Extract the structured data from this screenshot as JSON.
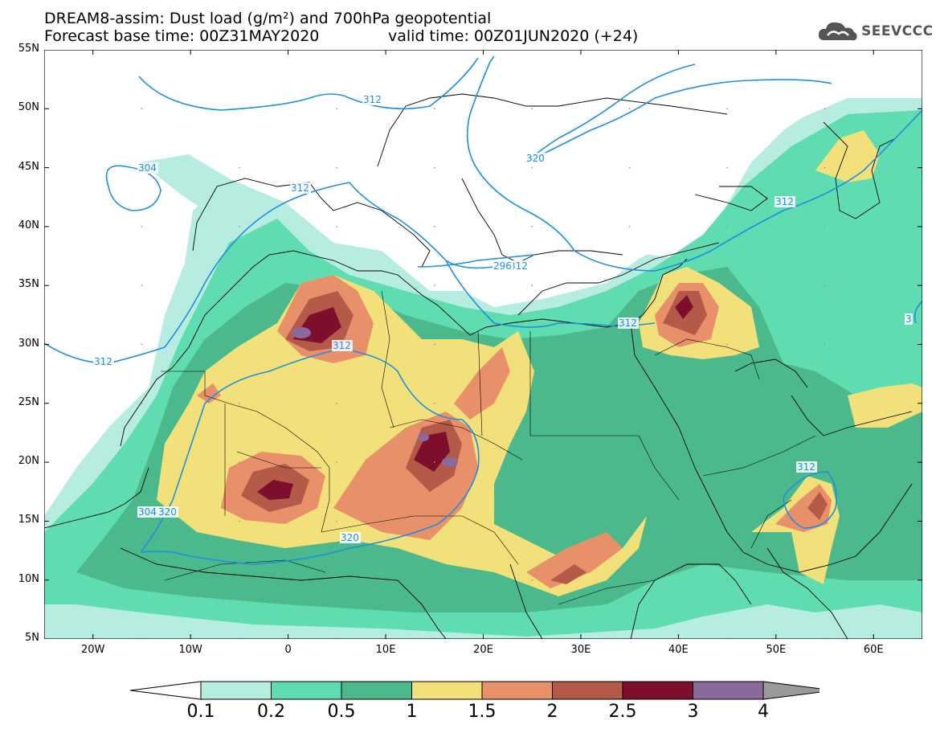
{
  "title_line1": "DREAM8-assim: Dust load (g/m²) and 700hPa geopotential",
  "title_line2_left": "Forecast base time: 00Z31MAY2020",
  "title_line2_right": "valid time: 00Z01JUN2020 (+24)",
  "logo_text": "SEEVCCC",
  "logo_icon": "cloud-logo-icon",
  "map": {
    "lon_range": [
      -25,
      65
    ],
    "lat_range": [
      5,
      55
    ],
    "lat_labels": [
      "55N",
      "50N",
      "45N",
      "40N",
      "35N",
      "30N",
      "25N",
      "20N",
      "15N",
      "10N",
      "5N"
    ],
    "lat_values": [
      55,
      50,
      45,
      40,
      35,
      30,
      25,
      20,
      15,
      10,
      5
    ],
    "lon_labels": [
      "20W",
      "10W",
      "0",
      "10E",
      "20E",
      "30E",
      "40E",
      "50E",
      "60E"
    ],
    "lon_values": [
      -20,
      -10,
      0,
      10,
      20,
      30,
      40,
      50,
      60
    ],
    "contour_labels": [
      "312",
      "312",
      "312",
      "312",
      "312",
      "312",
      "312",
      "304",
      "304",
      "296",
      "320",
      "320",
      "320",
      "312",
      "3"
    ],
    "contour_color": "#1e8fe0"
  },
  "colorbar": {
    "labels": [
      "0.1",
      "0.2",
      "0.5",
      "1",
      "1.5",
      "2",
      "2.5",
      "3",
      "4"
    ],
    "colors": [
      "#ffffff",
      "#b7ede0",
      "#5fdcb0",
      "#4bb98c",
      "#f2e07a",
      "#e8906a",
      "#b45a48",
      "#7d0f2d",
      "#8a6a9c",
      "#9a9a9a"
    ]
  }
}
